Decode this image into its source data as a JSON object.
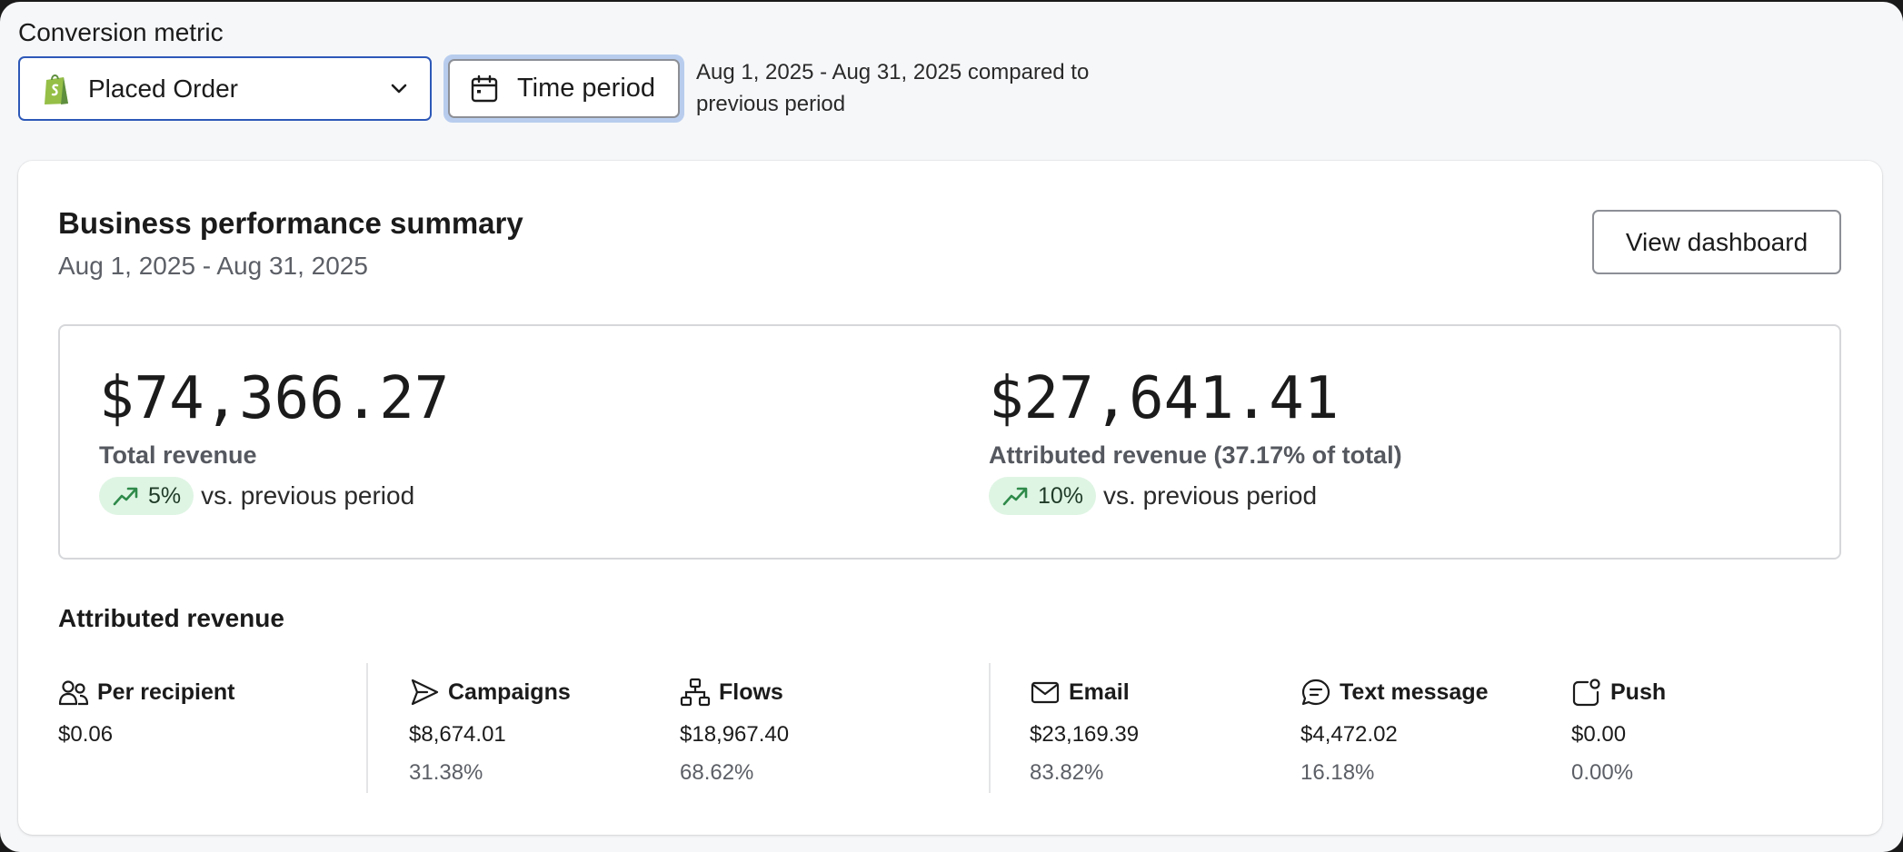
{
  "filters": {
    "conversion_metric_label": "Conversion metric",
    "metric_selected": "Placed Order",
    "time_period_label": "Time period",
    "comparison_text": "Aug 1, 2025 - Aug 31, 2025 compared to previous period"
  },
  "summary": {
    "title": "Business performance summary",
    "date_range": "Aug 1, 2025 - Aug 31, 2025",
    "view_dashboard_label": "View dashboard"
  },
  "kpis": {
    "total": {
      "value": "$74,366.27",
      "label": "Total revenue",
      "delta": "5%",
      "delta_suffix": "vs. previous period"
    },
    "attributed": {
      "value": "$27,641.41",
      "label": "Attributed revenue (37.17% of total)",
      "delta": "10%",
      "delta_suffix": "vs. previous period"
    }
  },
  "attributed_revenue": {
    "title": "Attributed revenue",
    "per_recipient": {
      "label": "Per recipient",
      "amount": "$0.06"
    },
    "campaigns": {
      "label": "Campaigns",
      "amount": "$8,674.01",
      "percent": "31.38%"
    },
    "flows": {
      "label": "Flows",
      "amount": "$18,967.40",
      "percent": "68.62%"
    },
    "email": {
      "label": "Email",
      "amount": "$23,169.39",
      "percent": "83.82%"
    },
    "sms": {
      "label": "Text message",
      "amount": "$4,472.02",
      "percent": "16.18%"
    },
    "push": {
      "label": "Push",
      "amount": "$0.00",
      "percent": "0.00%"
    }
  },
  "icons": {
    "metric": "shopify-bag-icon",
    "time": "calendar-icon",
    "chevron": "chevron-down-icon",
    "trend": "trend-up-icon",
    "per_recipient": "users-icon",
    "campaigns": "send-icon",
    "flows": "flow-icon",
    "email": "mail-icon",
    "sms": "message-icon",
    "push": "push-notification-icon"
  },
  "colors": {
    "accent_border": "#2d58b8",
    "focus_ring": "#b8cdee",
    "positive_pill": "#dff5e4",
    "positive_icon": "#2f8a4a",
    "shopify_green": "#95bf47"
  }
}
